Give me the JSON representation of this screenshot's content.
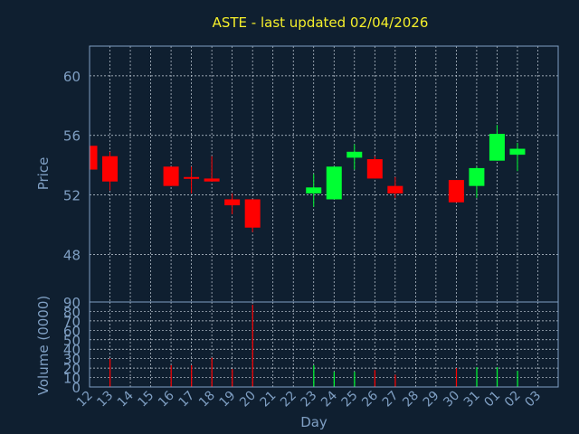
{
  "title": "ASTE - last updated 02/04/2026",
  "chart_data": [
    {
      "type": "candlestick",
      "ylabel": "Price",
      "ylim": [
        44.8,
        62
      ],
      "yticks": [
        48,
        52,
        56,
        60
      ],
      "grid": true,
      "colors": {
        "up": "#00ff33",
        "down": "#ff0000"
      },
      "x": [
        "12",
        "13",
        "14",
        "15",
        "16",
        "17",
        "18",
        "19",
        "20",
        "21",
        "22",
        "23",
        "24",
        "25",
        "26",
        "27",
        "28",
        "29",
        "30",
        "31",
        "01",
        "02",
        "03"
      ],
      "candles": [
        {
          "x": "12",
          "open": 55.3,
          "close": 53.7,
          "high": 55.3,
          "low": 53.7
        },
        {
          "x": "13",
          "open": 54.6,
          "close": 52.9,
          "high": 54.9,
          "low": 52.3
        },
        {
          "x": "16",
          "open": 53.9,
          "close": 52.6,
          "high": 53.9,
          "low": 52.6
        },
        {
          "x": "17",
          "open": 53.2,
          "close": 53.1,
          "high": 53.9,
          "low": 52.1
        },
        {
          "x": "18",
          "open": 53.1,
          "close": 52.9,
          "high": 54.6,
          "low": 52.9
        },
        {
          "x": "19",
          "open": 51.7,
          "close": 51.3,
          "high": 52.1,
          "low": 50.7
        },
        {
          "x": "20",
          "open": 51.7,
          "close": 49.8,
          "high": 51.7,
          "low": 49.5
        },
        {
          "x": "23",
          "open": 52.1,
          "close": 52.5,
          "high": 53.4,
          "low": 51.2
        },
        {
          "x": "24",
          "open": 51.7,
          "close": 53.9,
          "high": 53.9,
          "low": 51.7
        },
        {
          "x": "25",
          "open": 54.5,
          "close": 54.9,
          "high": 55.4,
          "low": 53.7
        },
        {
          "x": "26",
          "open": 54.4,
          "close": 53.1,
          "high": 54.6,
          "low": 53.1
        },
        {
          "x": "27",
          "open": 52.6,
          "close": 52.1,
          "high": 53.2,
          "low": 51.8
        },
        {
          "x": "30",
          "open": 53.0,
          "close": 51.5,
          "high": 53.0,
          "low": 51.5
        },
        {
          "x": "31",
          "open": 52.6,
          "close": 53.8,
          "high": 53.9,
          "low": 51.8
        },
        {
          "x": "01",
          "open": 54.3,
          "close": 56.1,
          "high": 56.7,
          "low": 54.3
        },
        {
          "x": "02",
          "open": 54.7,
          "close": 55.1,
          "high": 55.5,
          "low": 53.6
        }
      ]
    },
    {
      "type": "bar",
      "ylabel": "Volume (0000)",
      "xlabel": "Day",
      "ylim": [
        0,
        90
      ],
      "yticks": [
        0,
        10,
        20,
        30,
        40,
        50,
        60,
        70,
        80,
        90
      ],
      "grid": true,
      "x": [
        "12",
        "13",
        "14",
        "15",
        "16",
        "17",
        "18",
        "19",
        "20",
        "21",
        "22",
        "23",
        "24",
        "25",
        "26",
        "27",
        "28",
        "29",
        "30",
        "31",
        "01",
        "02",
        "03"
      ],
      "values": [
        {
          "x": "13",
          "value": 30,
          "dir": "down"
        },
        {
          "x": "16",
          "value": 23,
          "dir": "down"
        },
        {
          "x": "17",
          "value": 23,
          "dir": "down"
        },
        {
          "x": "18",
          "value": 31,
          "dir": "down"
        },
        {
          "x": "19",
          "value": 19,
          "dir": "down"
        },
        {
          "x": "20",
          "value": 87,
          "dir": "down"
        },
        {
          "x": "23",
          "value": 23,
          "dir": "up"
        },
        {
          "x": "24",
          "value": 16,
          "dir": "up"
        },
        {
          "x": "25",
          "value": 16,
          "dir": "up"
        },
        {
          "x": "26",
          "value": 18,
          "dir": "down"
        },
        {
          "x": "27",
          "value": 13,
          "dir": "down"
        },
        {
          "x": "30",
          "value": 20,
          "dir": "down"
        },
        {
          "x": "31",
          "value": 21,
          "dir": "up"
        },
        {
          "x": "01",
          "value": 21,
          "dir": "up"
        },
        {
          "x": "02",
          "value": 17,
          "dir": "up"
        }
      ]
    }
  ]
}
